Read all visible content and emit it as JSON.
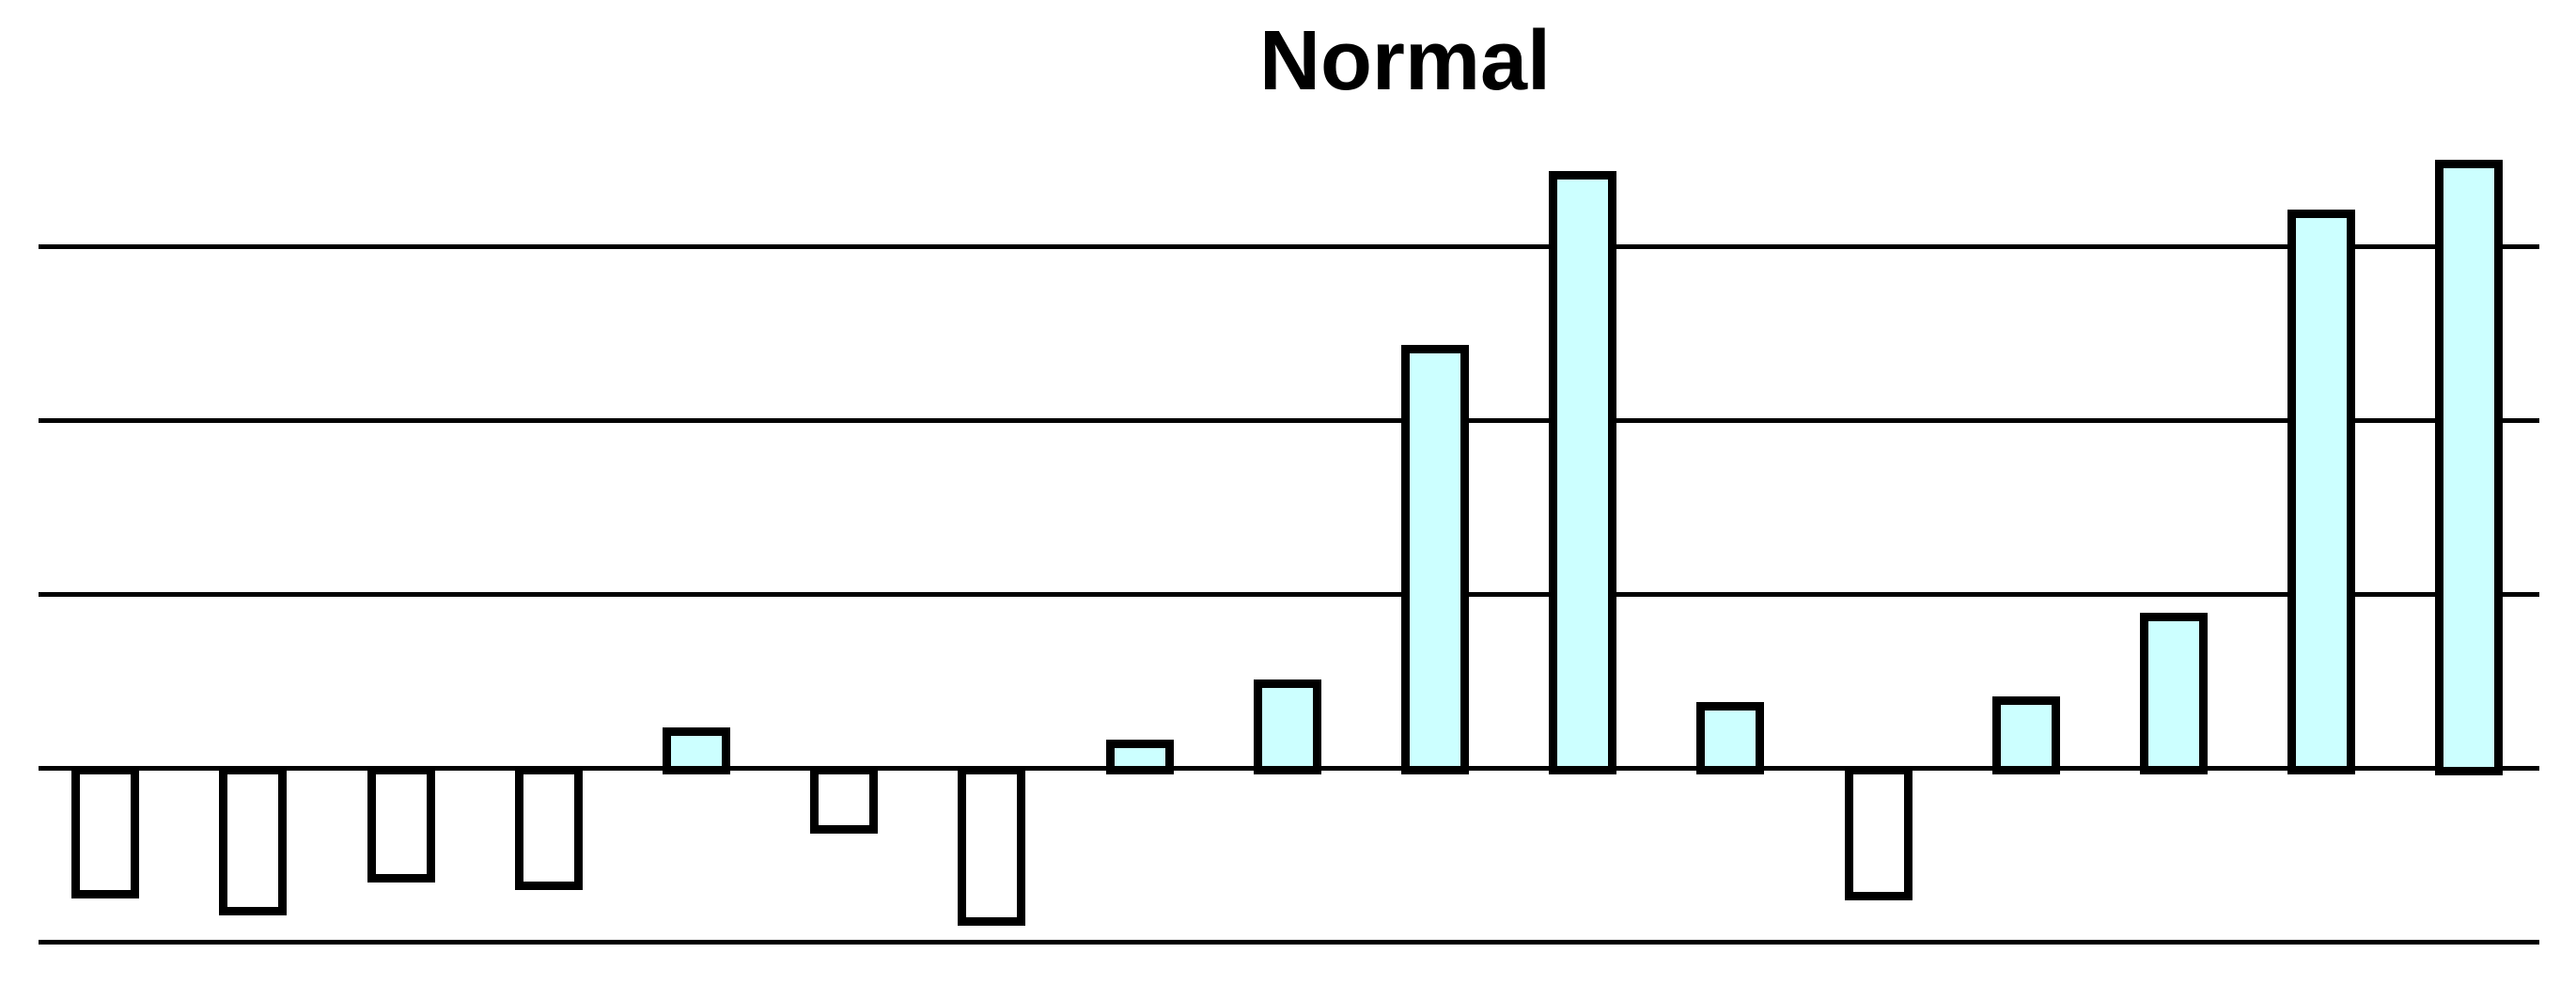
{
  "chart_data": {
    "type": "bar",
    "title": "Normal",
    "values": [
      -0.75,
      -0.85,
      -0.66,
      -0.7,
      0.23,
      -0.38,
      -0.91,
      0.16,
      0.51,
      2.43,
      3.43,
      0.38,
      -0.76,
      0.41,
      0.89,
      3.21,
      3.5
    ],
    "xlabel": "",
    "ylabel": "",
    "ylim": [
      -1,
      3.6
    ],
    "gridline_values": [
      3,
      2,
      1,
      0,
      -1
    ],
    "grid": "horizontal-only",
    "legend": "none",
    "axis_tick_labels_visible": false,
    "colors": {
      "positive_fill": "#CCFFFF",
      "negative_fill": "#FFFFFF",
      "bar_outline": "#000000",
      "gridline": "#000000",
      "background": "#FFFFFF",
      "title_text": "#000000"
    }
  }
}
